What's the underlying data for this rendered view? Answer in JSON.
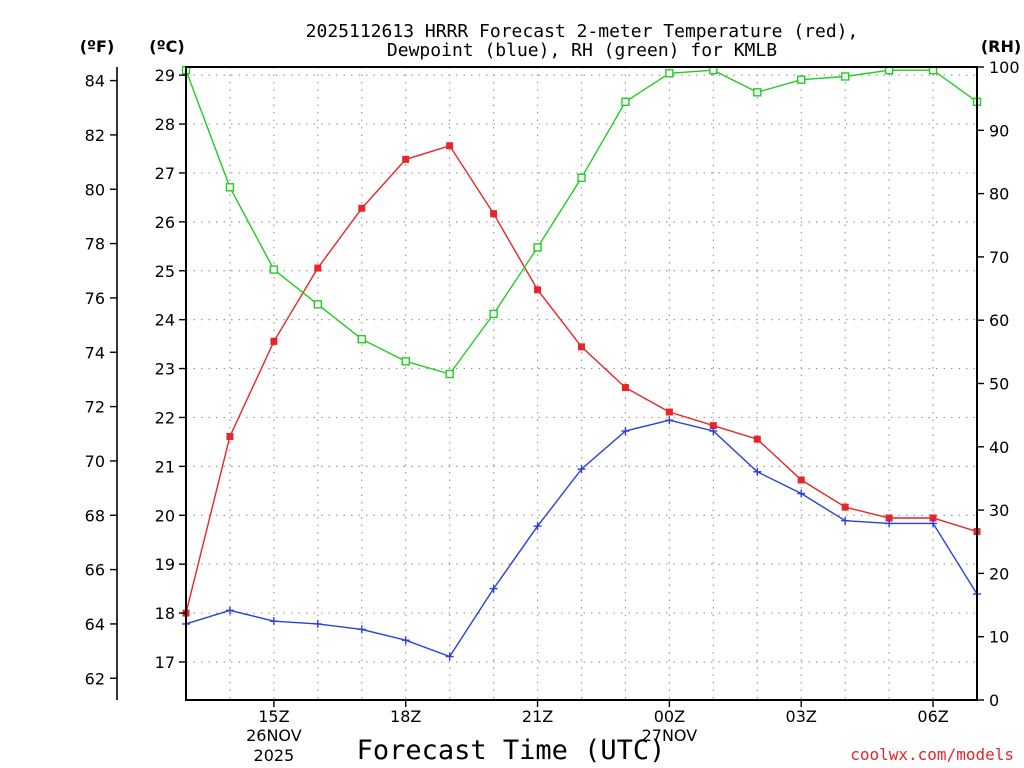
{
  "chart_data": {
    "type": "line",
    "title_line1": "2025112613 HRRR Forecast 2-meter Temperature (red),",
    "title_line2": "Dewpoint (blue), RH (green) for KMLB",
    "axis_unit_f": "(ºF)",
    "axis_unit_c": "(ºC)",
    "axis_unit_rh": "(RH)",
    "xlabel": "Forecast Time (UTC)",
    "credit": "coolwx.com/models",
    "hours": [
      13,
      14,
      15,
      16,
      17,
      18,
      19,
      20,
      21,
      22,
      23,
      24,
      25,
      26,
      27,
      28,
      29,
      30,
      31
    ],
    "x_range": [
      13,
      31
    ],
    "x_ticks": [
      {
        "hour": 15,
        "label": "15Z",
        "sub1": "26NOV",
        "sub2": "2025"
      },
      {
        "hour": 18,
        "label": "18Z",
        "sub1": "",
        "sub2": ""
      },
      {
        "hour": 21,
        "label": "21Z",
        "sub1": "",
        "sub2": ""
      },
      {
        "hour": 24,
        "label": "00Z",
        "sub1": "27NOV",
        "sub2": ""
      },
      {
        "hour": 27,
        "label": "03Z",
        "sub1": "",
        "sub2": ""
      },
      {
        "hour": 30,
        "label": "06Z",
        "sub1": "",
        "sub2": ""
      }
    ],
    "f_range": [
      61.2,
      84.5
    ],
    "f_ticks": [
      62,
      64,
      66,
      68,
      70,
      72,
      74,
      76,
      78,
      80,
      82,
      84
    ],
    "c_ticks": [
      17,
      18,
      19,
      20,
      21,
      22,
      23,
      24,
      25,
      26,
      27,
      28,
      29
    ],
    "rh_range": [
      0,
      100
    ],
    "rh_ticks": [
      0,
      10,
      20,
      30,
      40,
      50,
      60,
      70,
      80,
      90,
      100
    ],
    "series": [
      {
        "name": "Temperature",
        "color": "#e8252a",
        "marker": "filled-square",
        "unit": "F",
        "values": [
          64.4,
          70.9,
          74.4,
          77.1,
          79.3,
          81.1,
          81.6,
          79.1,
          76.3,
          74.2,
          72.7,
          71.8,
          71.3,
          70.8,
          69.3,
          68.3,
          67.9,
          67.9,
          67.4
        ]
      },
      {
        "name": "Dewpoint",
        "color": "#2b3fe0",
        "marker": "plus",
        "unit": "F",
        "values": [
          64.0,
          64.5,
          64.1,
          64.0,
          63.8,
          63.4,
          62.8,
          65.3,
          67.6,
          69.7,
          71.1,
          71.5,
          71.1,
          69.6,
          68.8,
          67.8,
          67.7,
          67.7,
          65.1
        ]
      },
      {
        "name": "RH",
        "color": "#22cc22",
        "marker": "open-square",
        "unit": "%",
        "values": [
          99.5,
          81,
          68,
          62.5,
          57,
          53.5,
          51.5,
          61,
          71.5,
          82.5,
          94.5,
          99,
          99.5,
          96,
          98,
          98.5,
          99.5,
          99.5,
          94.5
        ]
      }
    ]
  }
}
